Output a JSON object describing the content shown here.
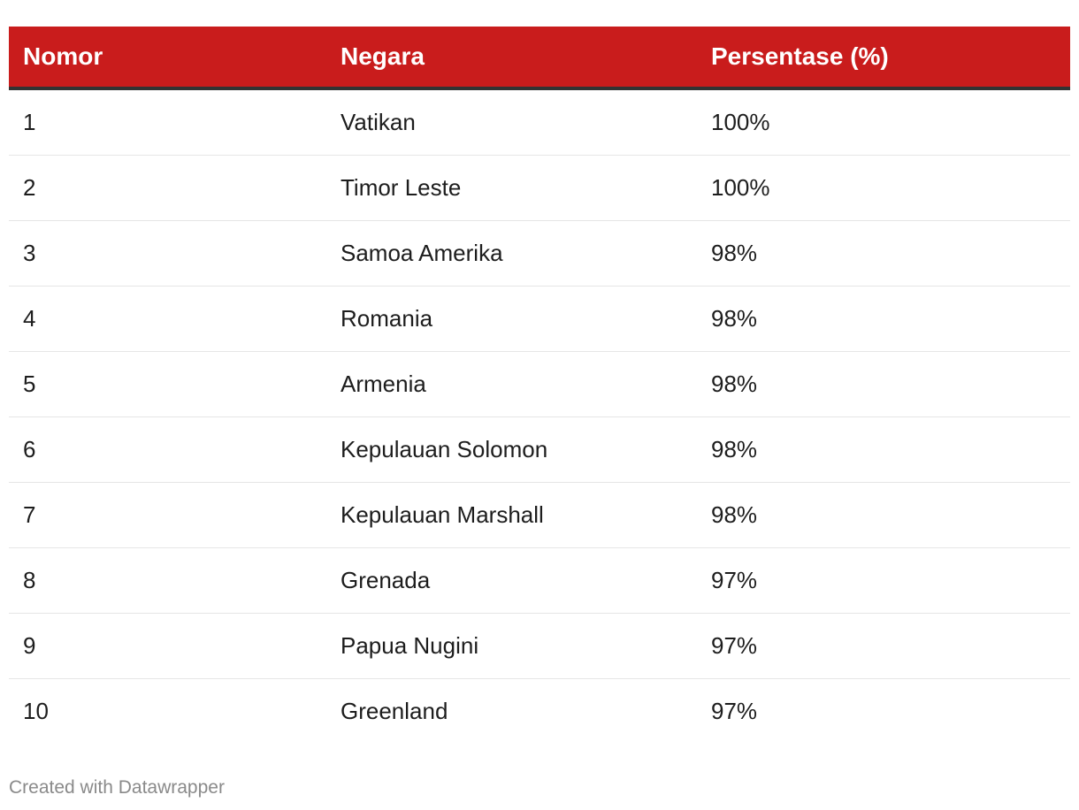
{
  "chart_data": {
    "type": "table",
    "columns": [
      "Nomor",
      "Negara",
      "Persentase (%)"
    ],
    "rows": [
      [
        "1",
        "Vatikan",
        "100%"
      ],
      [
        "2",
        "Timor Leste",
        "100%"
      ],
      [
        "3",
        "Samoa Amerika",
        "98%"
      ],
      [
        "4",
        "Romania",
        "98%"
      ],
      [
        "5",
        "Armenia",
        "98%"
      ],
      [
        "6",
        "Kepulauan Solomon",
        "98%"
      ],
      [
        "7",
        "Kepulauan Marshall",
        "98%"
      ],
      [
        "8",
        "Grenada",
        "97%"
      ],
      [
        "9",
        "Papua Nugini",
        "97%"
      ],
      [
        "10",
        "Greenland",
        "97%"
      ]
    ],
    "header_color": "#c91c1c"
  },
  "footer": {
    "credit": "Created with Datawrapper"
  }
}
